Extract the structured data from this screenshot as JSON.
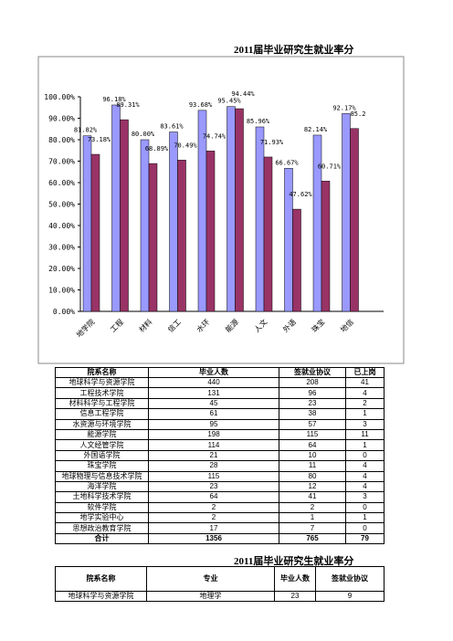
{
  "title": "2011届毕业研究生就业率分",
  "chart_data": {
    "type": "bar",
    "categories": [
      "地学院",
      "工程",
      "材料",
      "信工",
      "水环",
      "能源",
      "人文",
      "外语",
      "珠宝",
      "地信"
    ],
    "series": [
      {
        "color": "#9999ff",
        "values": [
          81.82,
          96.18,
          80.0,
          83.61,
          93.68,
          95.45,
          85.96,
          66.67,
          82.14,
          92.17
        ],
        "value_labels": [
          "81.82%",
          "96.18%",
          "80.00%",
          "83.61%",
          "93.68%",
          "95.45%",
          "85.96%",
          "66.67%",
          "82.14%",
          "92.17%"
        ]
      },
      {
        "color": "#993366",
        "values": [
          73.18,
          89.31,
          68.89,
          70.49,
          74.74,
          94.44,
          71.93,
          47.62,
          60.71,
          85.2
        ],
        "value_labels": [
          "73.18%",
          "89.31%",
          "68.89%",
          "70.49%",
          "74.74%",
          "94.44%",
          "71.93%",
          "47.62%",
          "60.71%",
          "85.2"
        ]
      }
    ],
    "ylim": [
      0,
      100
    ],
    "yticks": [
      {
        "value": 0,
        "label": "0.00%"
      },
      {
        "value": 10,
        "label": "10.00%"
      },
      {
        "value": 20,
        "label": "20.00%"
      },
      {
        "value": 30,
        "label": "30.00%"
      },
      {
        "value": 40,
        "label": "40.00%"
      },
      {
        "value": 50,
        "label": "50.00%"
      },
      {
        "value": 60,
        "label": "60.00%"
      },
      {
        "value": 70,
        "label": "70.00%"
      },
      {
        "value": 80,
        "label": "80.00%"
      },
      {
        "value": 90,
        "label": "90.00%"
      },
      {
        "value": 100,
        "label": "100.00%"
      }
    ]
  },
  "table": {
    "columns": [
      "院系名称",
      "毕业人数",
      "签就业协议",
      "已上岗"
    ],
    "rows": [
      [
        "地球科学与资源学院",
        440,
        208,
        41
      ],
      [
        "工程技术学院",
        131,
        96,
        4
      ],
      [
        "材料科学与工程学院",
        45,
        23,
        2
      ],
      [
        "信息工程学院",
        61,
        38,
        1
      ],
      [
        "水资源与环境学院",
        95,
        57,
        3
      ],
      [
        "能源学院",
        198,
        115,
        11
      ],
      [
        "人文经管学院",
        114,
        64,
        1
      ],
      [
        "外国语学院",
        21,
        10,
        0
      ],
      [
        "珠宝学院",
        28,
        11,
        4
      ],
      [
        "地球物理与信息技术学院",
        115,
        80,
        4
      ],
      [
        "海洋学院",
        23,
        12,
        4
      ],
      [
        "土地科学技术学院",
        64,
        41,
        3
      ],
      [
        "软件学院",
        2,
        2,
        0
      ],
      [
        "地学实验中心",
        2,
        1,
        1
      ],
      [
        "思想政治教育学院",
        17,
        7,
        0
      ],
      [
        "合计",
        1356,
        765,
        79
      ]
    ]
  },
  "title2": "2011届毕业研究生就业率分",
  "table2": {
    "columns": [
      "院系名称",
      "专业",
      "毕业人数",
      "签就业协议"
    ],
    "rows": [
      [
        "地球科学与资源学院",
        "地理学",
        23,
        9
      ]
    ]
  }
}
